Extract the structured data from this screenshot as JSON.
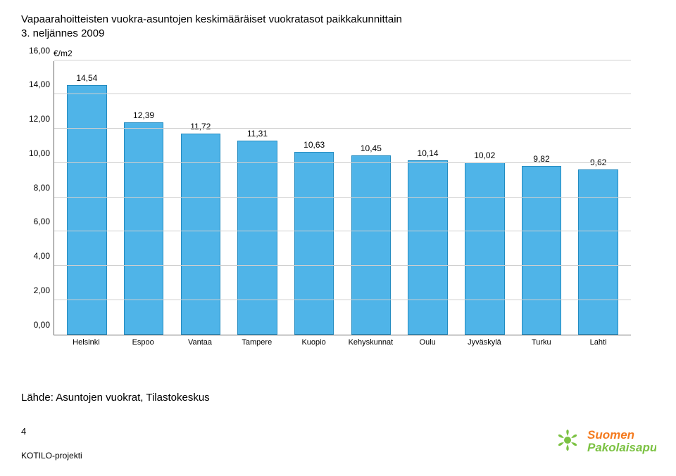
{
  "title_line1": "Vapaarahoitteisten vuokra-asuntojen keskimääräiset vuokratasot paikkakunnittain",
  "title_line2": "3. neljännes 2009",
  "source_label": "Lähde: Asuntojen vuokrat, Tilastokeskus",
  "page_number": "4",
  "footer_brand": "KOTILO-projekti",
  "logo_text_top": "Suomen",
  "logo_text_bottom": "Pakolaisapu",
  "chart": {
    "type": "bar",
    "y_unit_label": "€/m2",
    "ylim": [
      0,
      16
    ],
    "ytick_step": 2,
    "yticks": [
      "0,00",
      "2,00",
      "4,00",
      "6,00",
      "8,00",
      "10,00",
      "12,00",
      "14,00",
      "16,00"
    ],
    "ytick_values": [
      0,
      2,
      4,
      6,
      8,
      10,
      12,
      14,
      16
    ],
    "categories": [
      "Helsinki",
      "Espoo",
      "Vantaa",
      "Tampere",
      "Kuopio",
      "Kehyskunnat",
      "Oulu",
      "Jyväskylä",
      "Turku",
      "Lahti"
    ],
    "values": [
      14.54,
      12.39,
      11.72,
      11.31,
      10.63,
      10.45,
      10.14,
      10.02,
      9.82,
      9.62
    ],
    "value_labels": [
      "14,54",
      "12,39",
      "11,72",
      "11,31",
      "10,63",
      "10,45",
      "10,14",
      "10,02",
      "9,82",
      "9,62"
    ],
    "bar_color": "#4fb4e8",
    "bar_border_color": "#238bc0",
    "grid_color": "#cfcfcf",
    "axis_color": "#666666",
    "background_color": "#ffffff",
    "title_fontsize": 15,
    "label_fontsize": 12,
    "bar_width": 0.7
  },
  "logo_colors": {
    "petal": "#7cc243",
    "center": "#7cc243",
    "text_top": "#f47b20",
    "text_bottom": "#7cc243"
  }
}
